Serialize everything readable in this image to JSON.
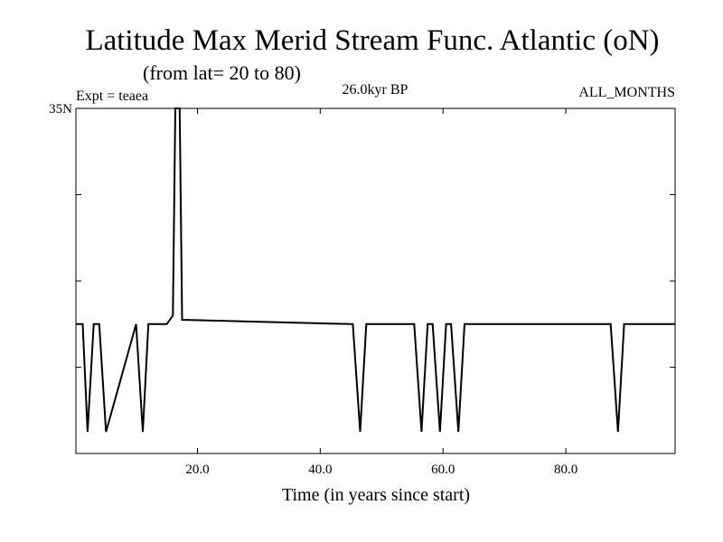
{
  "chart_data": {
    "type": "line",
    "title": "Latitude Max Merid Stream Func. Atlantic (oN)",
    "subtitle": "(from lat= 20 to 80)",
    "experiment_label": "Expt = teaea",
    "period_label": "26.0kyr BP",
    "months_label": "ALL_MONTHS",
    "xlabel": "Time (in years since start)",
    "xlim": [
      0.2,
      97.8
    ],
    "ylim": [
      27,
      35
    ],
    "x_ticks": [
      20,
      40,
      60,
      80
    ],
    "x_tick_labels": [
      "20.0",
      "40.0",
      "60.0",
      "80.0"
    ],
    "y_ticks": [
      27,
      29,
      31,
      33,
      35
    ],
    "y_tick_labels": [
      "",
      "",
      "",
      "",
      "35N"
    ],
    "grid": false,
    "series": [
      {
        "values_x": [
          0.2,
          1.3,
          2.1,
          3.1,
          4.0,
          5.1,
          10.0,
          11.1,
          12.0,
          15.0,
          16.0,
          16.4,
          17.1,
          17.5,
          45.3,
          46.5,
          47.5,
          55.3,
          56.5,
          57.5,
          58.3,
          59.5,
          60.5,
          61.3,
          62.5,
          63.5,
          87.3,
          88.5,
          89.5,
          97.8
        ],
        "values_y": [
          30,
          30,
          27.5,
          30,
          30,
          27.5,
          30,
          27.5,
          30,
          30,
          30.2,
          35,
          35,
          30.1,
          30,
          27.5,
          30,
          30,
          27.5,
          30,
          30,
          27.5,
          30,
          30,
          27.5,
          30,
          30,
          27.5,
          30,
          30
        ]
      }
    ]
  }
}
